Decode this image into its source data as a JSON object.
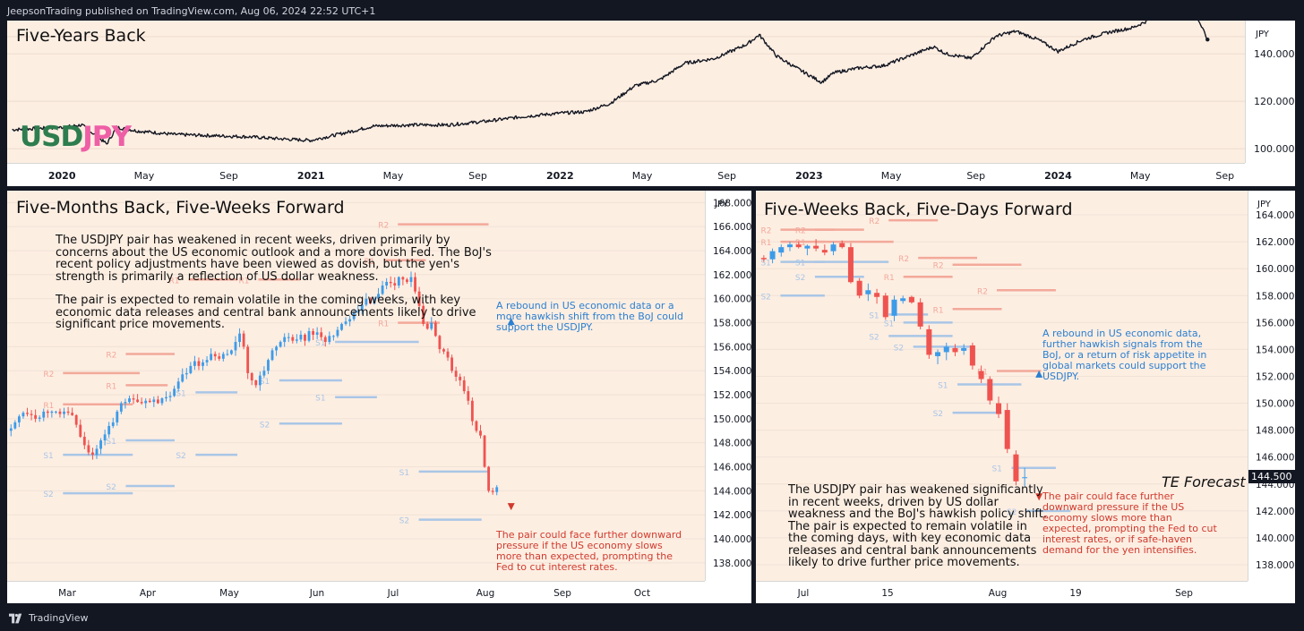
{
  "header": {
    "attribution": "JeepsonTrading published on TradingView.com, Aug 06, 2024 22:52 UTC+1"
  },
  "footer": {
    "brand": "TradingView"
  },
  "chart_data": [
    {
      "type": "line",
      "title": "Five-Years Back",
      "symbol": {
        "base": "USD",
        "quote": "JPY",
        "base_color": "#2e7d4f",
        "quote_color": "#ee5fa6"
      },
      "currency": "JPY",
      "ylim": [
        94,
        154
      ],
      "y_ticks": [
        100,
        120,
        140
      ],
      "x_ticks": [
        {
          "label": "2020",
          "t": 2020.0,
          "bold": true
        },
        {
          "label": "May",
          "t": 2020.33
        },
        {
          "label": "Sep",
          "t": 2020.67
        },
        {
          "label": "2021",
          "t": 2021.0,
          "bold": true
        },
        {
          "label": "May",
          "t": 2021.33
        },
        {
          "label": "Sep",
          "t": 2021.67
        },
        {
          "label": "2022",
          "t": 2022.0,
          "bold": true
        },
        {
          "label": "May",
          "t": 2022.33
        },
        {
          "label": "Sep",
          "t": 2022.67
        },
        {
          "label": "2023",
          "t": 2023.0,
          "bold": true
        },
        {
          "label": "May",
          "t": 2023.33
        },
        {
          "label": "Sep",
          "t": 2023.67
        },
        {
          "label": "2024",
          "t": 2024.0,
          "bold": true
        },
        {
          "label": "May",
          "t": 2024.33
        },
        {
          "label": "Sep",
          "t": 2024.67
        }
      ],
      "xlim": [
        2019.78,
        2024.75
      ],
      "series": [
        {
          "x": [
            2019.8,
            2019.9,
            2020.0,
            2020.08,
            2020.18,
            2020.22,
            2020.3,
            2020.45,
            2020.6,
            2020.75,
            2020.9,
            2021.0,
            2021.15,
            2021.25,
            2021.4,
            2021.55,
            2021.7,
            2021.85,
            2022.0,
            2022.1,
            2022.2,
            2022.3,
            2022.4,
            2022.5,
            2022.62,
            2022.75,
            2022.8,
            2022.87,
            2022.95,
            2023.05,
            2023.1,
            2023.2,
            2023.3,
            2023.4,
            2023.5,
            2023.55,
            2023.65,
            2023.75,
            2023.83,
            2023.92,
            2024.0,
            2024.1,
            2024.2,
            2024.3,
            2024.4,
            2024.48,
            2024.52,
            2024.56,
            2024.6
          ],
          "y": [
            108,
            108.5,
            109,
            110,
            102,
            109,
            107.5,
            106,
            105.5,
            105,
            104,
            103.5,
            107,
            109.5,
            110,
            110,
            111.5,
            113.5,
            115,
            115.5,
            119,
            126.5,
            129,
            136,
            138,
            144,
            148,
            139,
            134,
            128,
            132,
            134,
            135,
            139,
            143,
            140,
            138,
            147.5,
            149.5,
            146,
            141,
            146,
            149,
            151,
            156,
            159,
            161,
            155,
            146
          ]
        }
      ]
    },
    {
      "type": "candlestick",
      "title": "Five-Months Back, Five-Weeks Forward",
      "currency": "JPY",
      "ylim": [
        136.5,
        169
      ],
      "y_ticks": [
        138,
        140,
        142,
        144,
        146,
        148,
        150,
        152,
        154,
        156,
        158,
        160,
        162,
        164,
        166,
        168
      ],
      "x_ticks": [
        "Mar",
        "Apr",
        "May",
        "Jun",
        "Jul",
        "Aug",
        "Sep",
        "Oct"
      ],
      "narrative": [
        "The USDJPY pair has weakened in recent weeks, driven primarily by concerns about the US economic outlook and a more dovish Fed. The BoJ's recent policy adjustments have been viewed as dovish, but the yen's strength is primarily a reflection of US dollar weakness.",
        "The pair is expected to remain volatile in the coming weeks, with key economic data releases and central bank announcements likely to drive significant price movements."
      ],
      "upside_note": "A rebound in US economic data or a more hawkish shift from the BoJ could support the USDJPY.",
      "downside_note": "The pair could face further downward pressure if the US economy slows more than expected, prompting the Fed to cut interest rates.",
      "closes": [
        149.2,
        149.7,
        150.2,
        150.5,
        150.4,
        150.3,
        150.0,
        150.1,
        150.6,
        150.5,
        150.6,
        150.6,
        150.4,
        150.6,
        150.5,
        150.3,
        149.5,
        148.5,
        147.8,
        147.2,
        147.0,
        147.5,
        148.2,
        148.7,
        149.4,
        149.7,
        150.6,
        151.3,
        151.4,
        151.7,
        151.6,
        151.4,
        151.3,
        151.5,
        151.4,
        151.6,
        151.3,
        151.7,
        151.8,
        151.9,
        152.5,
        153.1,
        153.7,
        153.8,
        154.4,
        154.8,
        154.4,
        154.7,
        154.9,
        155.4,
        155.2,
        155.0,
        155.4,
        155.4,
        155.7,
        156.4,
        157.1,
        156.0,
        153.8,
        153.2,
        152.8,
        153.6,
        154.0,
        154.9,
        155.7,
        156.0,
        156.4,
        156.8,
        156.8,
        156.5,
        156.6,
        157.0,
        156.5,
        157.3,
        157.0,
        157.2,
        156.8,
        156.4,
        156.9,
        156.9,
        157.4,
        157.9,
        158.1,
        158.3,
        158.9,
        159.0,
        159.5,
        160.0,
        159.6,
        160.0,
        160.4,
        161.1,
        161.4,
        161.3,
        161.1,
        161.8,
        161.6,
        161.4,
        161.8,
        160.6,
        159.4,
        157.9,
        157.5,
        158.0,
        156.9,
        155.8,
        155.6,
        155.1,
        154.0,
        153.5,
        153.2,
        152.3,
        151.5,
        149.8,
        149.0,
        148.6,
        146.0,
        144.0,
        143.9,
        144.3
      ],
      "levels": [
        {
          "label": "R2",
          "y": 166.2,
          "x0": 0.56,
          "x1": 0.69
        },
        {
          "label": "R1",
          "y": 163.2,
          "x0": 0.54,
          "x1": 0.6
        },
        {
          "label": "R1",
          "y": 161.6,
          "x0": 0.26,
          "x1": 0.33
        },
        {
          "label": "R1",
          "y": 161.6,
          "x0": 0.36,
          "x1": 0.42
        },
        {
          "label": "R1",
          "y": 158.0,
          "x0": 0.56,
          "x1": 0.62
        },
        {
          "label": "R2",
          "y": 155.4,
          "x0": 0.17,
          "x1": 0.24
        },
        {
          "label": "R2",
          "y": 153.8,
          "x0": 0.08,
          "x1": 0.19
        },
        {
          "label": "R1",
          "y": 152.8,
          "x0": 0.17,
          "x1": 0.23
        },
        {
          "label": "R1",
          "y": 151.2,
          "x0": 0.08,
          "x1": 0.18
        },
        {
          "label": "S1",
          "y": 156.4,
          "x0": 0.47,
          "x1": 0.59
        },
        {
          "label": "S1",
          "y": 153.2,
          "x0": 0.39,
          "x1": 0.48
        },
        {
          "label": "S1",
          "y": 152.2,
          "x0": 0.27,
          "x1": 0.33
        },
        {
          "label": "S1",
          "y": 151.8,
          "x0": 0.47,
          "x1": 0.53
        },
        {
          "label": "S2",
          "y": 149.6,
          "x0": 0.39,
          "x1": 0.48
        },
        {
          "label": "S1",
          "y": 148.2,
          "x0": 0.17,
          "x1": 0.24
        },
        {
          "label": "S1",
          "y": 147.0,
          "x0": 0.08,
          "x1": 0.18
        },
        {
          "label": "S2",
          "y": 147.0,
          "x0": 0.27,
          "x1": 0.33
        },
        {
          "label": "S1",
          "y": 145.6,
          "x0": 0.59,
          "x1": 0.69
        },
        {
          "label": "S2",
          "y": 144.4,
          "x0": 0.17,
          "x1": 0.24
        },
        {
          "label": "S2",
          "y": 143.8,
          "x0": 0.08,
          "x1": 0.18
        },
        {
          "label": "S2",
          "y": 141.6,
          "x0": 0.59,
          "x1": 0.68
        }
      ]
    },
    {
      "type": "candlestick",
      "title": "Five-Weeks Back, Five-Days Forward",
      "currency": "JPY",
      "last_price": "144.500",
      "forecast_label": "TE Forecast",
      "ylim": [
        136.8,
        165.8
      ],
      "y_ticks": [
        138,
        140,
        142,
        144,
        146,
        148,
        150,
        152,
        154,
        156,
        158,
        160,
        162,
        164
      ],
      "x_ticks": [
        "Jul",
        "15",
        "Aug",
        "19",
        "Sep"
      ],
      "narrative": [
        "The USDJPY pair has weakened significantly in recent weeks, driven by US dollar weakness and the BoJ's hawkish policy shift. The pair is expected to remain volatile in the coming days, with key economic data releases and central bank announcements likely to drive further price movements."
      ],
      "upside_note": "A rebound in US economic data, further hawkish signals from the BoJ, or a return of risk appetite in global markets could support the USDJPY.",
      "downside_note": "The pair could face further downward pressure if the US economy slows more than expected, prompting the Fed to cut interest rates, or if safe-haven demand for the yen intensifies.",
      "candles": [
        [
          160.8,
          161.0,
          160.5,
          160.7
        ],
        [
          160.7,
          161.5,
          160.4,
          161.3
        ],
        [
          161.2,
          161.8,
          160.9,
          161.6
        ],
        [
          161.6,
          162.0,
          161.3,
          161.8
        ],
        [
          161.8,
          162.0,
          161.5,
          161.6
        ],
        [
          161.5,
          161.8,
          161.0,
          161.7
        ],
        [
          161.7,
          162.2,
          161.3,
          161.5
        ],
        [
          161.4,
          161.8,
          161.0,
          161.2
        ],
        [
          161.3,
          162.0,
          161.0,
          161.8
        ],
        [
          161.9,
          162.1,
          161.5,
          161.6
        ],
        [
          161.6,
          161.9,
          158.9,
          159.0
        ],
        [
          159.1,
          159.3,
          157.8,
          158.0
        ],
        [
          158.1,
          158.9,
          157.6,
          158.4
        ],
        [
          158.2,
          158.5,
          157.4,
          157.9
        ],
        [
          158.0,
          158.2,
          156.2,
          156.4
        ],
        [
          156.5,
          158.0,
          156.1,
          157.7
        ],
        [
          157.6,
          158.0,
          157.4,
          157.8
        ],
        [
          157.9,
          158.0,
          157.4,
          157.5
        ],
        [
          157.5,
          157.8,
          155.5,
          155.7
        ],
        [
          155.5,
          155.8,
          153.3,
          153.6
        ],
        [
          153.5,
          154.0,
          152.9,
          153.8
        ],
        [
          153.8,
          154.5,
          153.2,
          154.2
        ],
        [
          154.1,
          154.4,
          153.5,
          153.8
        ],
        [
          153.9,
          154.4,
          153.6,
          154.1
        ],
        [
          154.3,
          154.5,
          152.5,
          152.8
        ],
        [
          152.4,
          152.8,
          151.5,
          151.8
        ],
        [
          151.8,
          152.0,
          149.9,
          150.2
        ],
        [
          150.0,
          150.5,
          148.9,
          149.2
        ],
        [
          149.5,
          150.0,
          146.3,
          146.6
        ],
        [
          146.2,
          146.5,
          143.9,
          144.2
        ],
        [
          144.5,
          145.2,
          143.8,
          144.5
        ]
      ],
      "levels": [
        {
          "label": "R2",
          "y": 163.6,
          "x0": 0.27,
          "x1": 0.37
        },
        {
          "label": "R2",
          "y": 162.9,
          "x0": 0.05,
          "x1": 0.16
        },
        {
          "label": "R2",
          "y": 162.9,
          "x0": 0.12,
          "x1": 0.22
        },
        {
          "label": "R1",
          "y": 162.0,
          "x0": 0.05,
          "x1": 0.14
        },
        {
          "label": "R1",
          "y": 162.0,
          "x0": 0.12,
          "x1": 0.28
        },
        {
          "label": "R2",
          "y": 160.8,
          "x0": 0.33,
          "x1": 0.45
        },
        {
          "label": "R2",
          "y": 160.3,
          "x0": 0.4,
          "x1": 0.54
        },
        {
          "label": "R1",
          "y": 159.4,
          "x0": 0.3,
          "x1": 0.4
        },
        {
          "label": "R2",
          "y": 158.4,
          "x0": 0.49,
          "x1": 0.61
        },
        {
          "label": "R1",
          "y": 157.0,
          "x0": 0.4,
          "x1": 0.5
        },
        {
          "label": "R1",
          "y": 152.4,
          "x0": 0.49,
          "x1": 0.58
        },
        {
          "label": "S1",
          "y": 160.5,
          "x0": 0.05,
          "x1": 0.14
        },
        {
          "label": "S1",
          "y": 160.5,
          "x0": 0.12,
          "x1": 0.27
        },
        {
          "label": "S2",
          "y": 158.0,
          "x0": 0.05,
          "x1": 0.14
        },
        {
          "label": "S2",
          "y": 159.4,
          "x0": 0.12,
          "x1": 0.22
        },
        {
          "label": "S1",
          "y": 156.6,
          "x0": 0.27,
          "x1": 0.35
        },
        {
          "label": "S2",
          "y": 155.0,
          "x0": 0.27,
          "x1": 0.4
        },
        {
          "label": "S1",
          "y": 156.0,
          "x0": 0.3,
          "x1": 0.4
        },
        {
          "label": "S2",
          "y": 154.2,
          "x0": 0.32,
          "x1": 0.44
        },
        {
          "label": "S1",
          "y": 151.4,
          "x0": 0.41,
          "x1": 0.54
        },
        {
          "label": "S2",
          "y": 149.3,
          "x0": 0.4,
          "x1": 0.5
        },
        {
          "label": "S1",
          "y": 145.2,
          "x0": 0.52,
          "x1": 0.61
        },
        {
          "label": "S2",
          "y": 142.0,
          "x0": 0.55,
          "x1": 0.64
        }
      ]
    }
  ]
}
